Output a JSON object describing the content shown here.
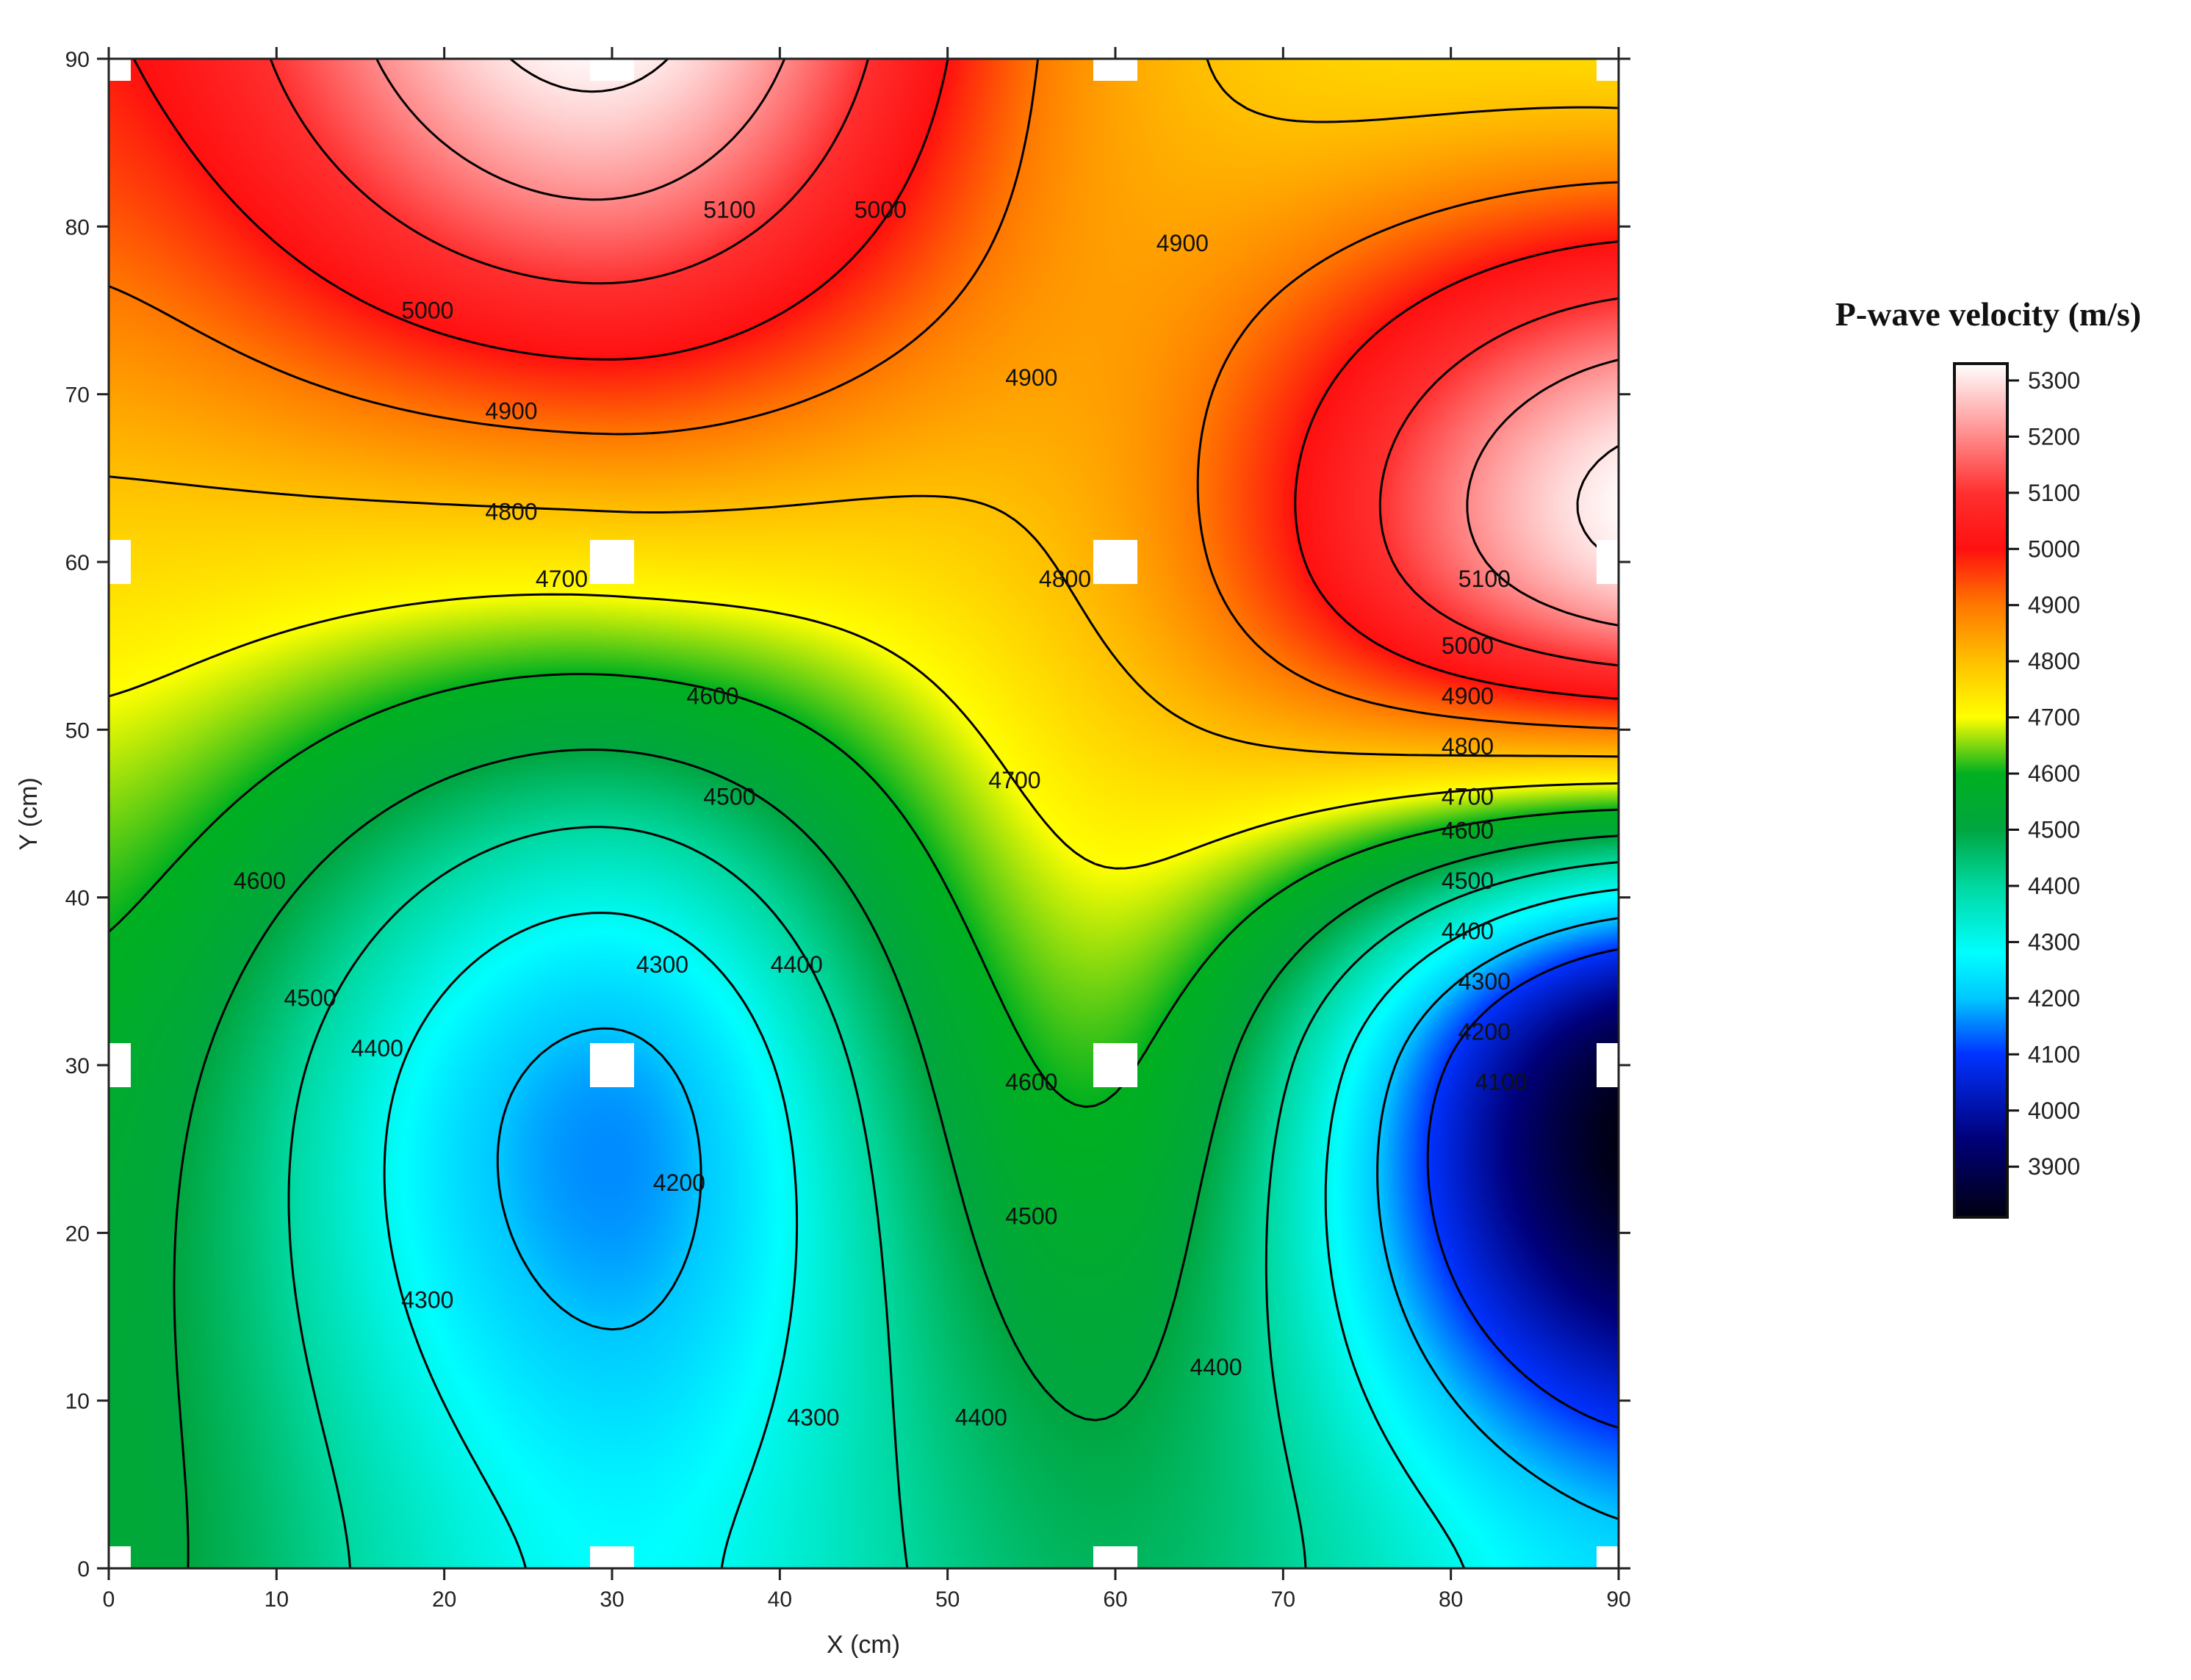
{
  "chart_data": {
    "type": "heatmap",
    "subtype": "filled-contour",
    "title": "",
    "xlabel": "X (cm)",
    "ylabel": "Y (cm)",
    "xlim": [
      0,
      90
    ],
    "ylim": [
      0,
      90
    ],
    "x_ticks": [
      0,
      10,
      20,
      30,
      40,
      50,
      60,
      70,
      80,
      90
    ],
    "y_ticks": [
      0,
      10,
      20,
      30,
      40,
      50,
      60,
      70,
      80,
      90
    ],
    "grid": false,
    "measurement_points": [
      {
        "x": 0,
        "y": 90
      },
      {
        "x": 30,
        "y": 90
      },
      {
        "x": 60,
        "y": 90
      },
      {
        "x": 90,
        "y": 90
      },
      {
        "x": 0,
        "y": 60
      },
      {
        "x": 30,
        "y": 60
      },
      {
        "x": 60,
        "y": 60
      },
      {
        "x": 90,
        "y": 60
      },
      {
        "x": 0,
        "y": 30
      },
      {
        "x": 30,
        "y": 30
      },
      {
        "x": 60,
        "y": 30
      },
      {
        "x": 90,
        "y": 30
      },
      {
        "x": 0,
        "y": 0
      },
      {
        "x": 30,
        "y": 0
      },
      {
        "x": 60,
        "y": 0
      },
      {
        "x": 90,
        "y": 0
      }
    ],
    "estimated_velocity_at_points": [
      {
        "x": 0,
        "y": 90,
        "v": 4990
      },
      {
        "x": 30,
        "y": 90,
        "v": 5320
      },
      {
        "x": 60,
        "y": 90,
        "v": 4840
      },
      {
        "x": 90,
        "y": 90,
        "v": 4760
      },
      {
        "x": 0,
        "y": 60,
        "v": 4760
      },
      {
        "x": 30,
        "y": 60,
        "v": 4740
      },
      {
        "x": 60,
        "y": 60,
        "v": 4830
      },
      {
        "x": 90,
        "y": 60,
        "v": 5300
      },
      {
        "x": 0,
        "y": 30,
        "v": 4560
      },
      {
        "x": 30,
        "y": 30,
        "v": 4180
      },
      {
        "x": 60,
        "y": 30,
        "v": 4610
      },
      {
        "x": 90,
        "y": 30,
        "v": 3850
      },
      {
        "x": 0,
        "y": 0,
        "v": 4530
      },
      {
        "x": 30,
        "y": 0,
        "v": 4280
      },
      {
        "x": 60,
        "y": 0,
        "v": 4470
      },
      {
        "x": 90,
        "y": 0,
        "v": 4230
      }
    ],
    "contour_levels": [
      4100,
      4200,
      4300,
      4400,
      4500,
      4600,
      4700,
      4800,
      4900,
      5000,
      5100,
      5200,
      5300
    ],
    "contour_labels": [
      {
        "text": "5100",
        "x": 37,
        "y": 81
      },
      {
        "text": "5000",
        "x": 46,
        "y": 81
      },
      {
        "text": "5000",
        "x": 19,
        "y": 75
      },
      {
        "text": "4900",
        "x": 64,
        "y": 79
      },
      {
        "text": "4900",
        "x": 24,
        "y": 69
      },
      {
        "text": "4900",
        "x": 55,
        "y": 71
      },
      {
        "text": "4800",
        "x": 24,
        "y": 63
      },
      {
        "text": "4800",
        "x": 57,
        "y": 59
      },
      {
        "text": "4700",
        "x": 27,
        "y": 59
      },
      {
        "text": "5100",
        "x": 82,
        "y": 59
      },
      {
        "text": "5000",
        "x": 81,
        "y": 55
      },
      {
        "text": "4900",
        "x": 81,
        "y": 52
      },
      {
        "text": "4800",
        "x": 81,
        "y": 49
      },
      {
        "text": "4700",
        "x": 81,
        "y": 46
      },
      {
        "text": "4600",
        "x": 36,
        "y": 52
      },
      {
        "text": "4700",
        "x": 54,
        "y": 47
      },
      {
        "text": "4600",
        "x": 81,
        "y": 44
      },
      {
        "text": "4500",
        "x": 37,
        "y": 46
      },
      {
        "text": "4500",
        "x": 81,
        "y": 41
      },
      {
        "text": "4400",
        "x": 81,
        "y": 38
      },
      {
        "text": "4600",
        "x": 9,
        "y": 41
      },
      {
        "text": "4300",
        "x": 33,
        "y": 36
      },
      {
        "text": "4400",
        "x": 41,
        "y": 36
      },
      {
        "text": "4300",
        "x": 82,
        "y": 35
      },
      {
        "text": "4500",
        "x": 12,
        "y": 34
      },
      {
        "text": "4200",
        "x": 82,
        "y": 32
      },
      {
        "text": "4400",
        "x": 16,
        "y": 31
      },
      {
        "text": "4100",
        "x": 83,
        "y": 29
      },
      {
        "text": "4600",
        "x": 55,
        "y": 29
      },
      {
        "text": "4200",
        "x": 34,
        "y": 23
      },
      {
        "text": "4500",
        "x": 55,
        "y": 21
      },
      {
        "text": "4300",
        "x": 19,
        "y": 16
      },
      {
        "text": "4400",
        "x": 66,
        "y": 12
      },
      {
        "text": "4300",
        "x": 42,
        "y": 9
      },
      {
        "text": "4400",
        "x": 52,
        "y": 9
      }
    ],
    "colorbar": {
      "title": "P-wave velocity (m/s)",
      "min": 3810,
      "max": 5330,
      "ticks": [
        5300,
        5200,
        5100,
        5000,
        4900,
        4800,
        4700,
        4600,
        4500,
        4400,
        4300,
        4200,
        4100,
        4000,
        3900
      ],
      "color_stops": [
        {
          "v": 3810,
          "color": "#000010"
        },
        {
          "v": 3950,
          "color": "#00007a"
        },
        {
          "v": 4100,
          "color": "#0033ff"
        },
        {
          "v": 4200,
          "color": "#00c8ff"
        },
        {
          "v": 4280,
          "color": "#00ffff"
        },
        {
          "v": 4400,
          "color": "#00d8a0"
        },
        {
          "v": 4500,
          "color": "#00a640"
        },
        {
          "v": 4600,
          "color": "#00b020"
        },
        {
          "v": 4700,
          "color": "#ffff00"
        },
        {
          "v": 4800,
          "color": "#ffc000"
        },
        {
          "v": 4900,
          "color": "#ff7800"
        },
        {
          "v": 5000,
          "color": "#ff1010"
        },
        {
          "v": 5100,
          "color": "#ff3030"
        },
        {
          "v": 5330,
          "color": "#ffffff"
        }
      ]
    }
  }
}
